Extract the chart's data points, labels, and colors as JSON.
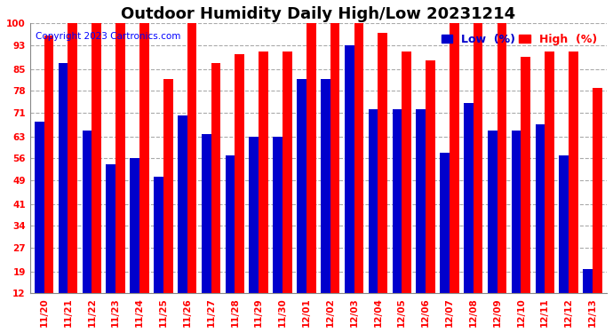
{
  "title": "Outdoor Humidity Daily High/Low 20231214",
  "copyright": "Copyright 2023 Cartronics.com",
  "categories": [
    "11/20",
    "11/21",
    "11/22",
    "11/23",
    "11/24",
    "11/25",
    "11/26",
    "11/27",
    "11/28",
    "11/29",
    "11/30",
    "12/01",
    "12/02",
    "12/03",
    "12/04",
    "12/05",
    "12/06",
    "12/07",
    "12/08",
    "12/09",
    "12/10",
    "12/11",
    "12/12",
    "12/13"
  ],
  "high": [
    96,
    100,
    100,
    100,
    100,
    82,
    100,
    87,
    90,
    91,
    91,
    100,
    100,
    100,
    97,
    91,
    88,
    100,
    100,
    100,
    89,
    91,
    91,
    79
  ],
  "low": [
    68,
    87,
    65,
    54,
    56,
    50,
    70,
    64,
    57,
    63,
    63,
    82,
    82,
    93,
    72,
    72,
    72,
    58,
    74,
    65,
    65,
    67,
    57,
    20
  ],
  "high_color": "#ff0000",
  "low_color": "#0000cc",
  "bg_color": "#ffffff",
  "yticks": [
    12,
    19,
    27,
    34,
    41,
    49,
    56,
    63,
    71,
    78,
    85,
    93,
    100
  ],
  "ymin": 12,
  "ymax": 100,
  "grid_color": "#aaaaaa",
  "legend_low_label": "Low  (%)",
  "legend_high_label": "High  (%)",
  "title_fontsize": 13,
  "copyright_fontsize": 7.5,
  "tick_fontsize": 7.5,
  "bar_width": 0.4
}
